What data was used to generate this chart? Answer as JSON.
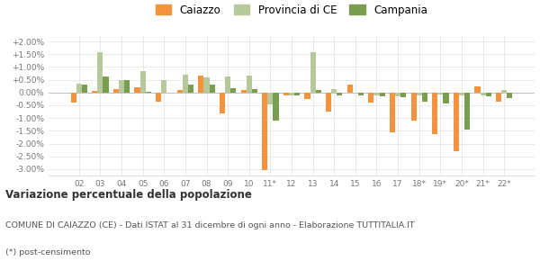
{
  "categories": [
    "02",
    "03",
    "04",
    "05",
    "06",
    "07",
    "08",
    "09",
    "10",
    "11*",
    "12",
    "13",
    "14",
    "15",
    "16",
    "17",
    "18*",
    "19*",
    "20*",
    "21*",
    "22*"
  ],
  "caiazzo": [
    -0.4,
    0.05,
    0.15,
    0.2,
    -0.35,
    0.1,
    0.65,
    -0.8,
    0.1,
    -3.05,
    -0.1,
    -0.25,
    -0.75,
    0.3,
    -0.4,
    -1.55,
    -1.1,
    -1.62,
    -2.3,
    0.25,
    -0.35
  ],
  "provincia_ce": [
    0.35,
    1.58,
    0.5,
    0.85,
    0.5,
    0.7,
    0.6,
    0.62,
    0.65,
    -0.45,
    -0.1,
    1.58,
    0.15,
    0.0,
    -0.1,
    -0.15,
    -0.12,
    -0.08,
    -0.1,
    -0.1,
    0.1
  ],
  "campania": [
    0.3,
    0.62,
    0.48,
    0.02,
    0.0,
    0.3,
    0.32,
    0.18,
    0.15,
    -1.1,
    -0.1,
    0.1,
    -0.1,
    -0.1,
    -0.15,
    -0.18,
    -0.35,
    -0.42,
    -1.45,
    -0.15,
    -0.22
  ],
  "color_caiazzo": "#f5923e",
  "color_provincia": "#b5c99a",
  "color_campania": "#7a9e50",
  "title_bold": "Variazione percentuale della popolazione",
  "subtitle1": "COMUNE DI CAIAZZO (CE) - Dati ISTAT al 31 dicembre di ogni anno - Elaborazione TUTTITALIA.IT",
  "subtitle2": "(*) post-censimento",
  "ylim": [
    -3.25,
    2.25
  ],
  "yticks": [
    -3.0,
    -2.5,
    -2.0,
    -1.5,
    -1.0,
    -0.5,
    0.0,
    0.5,
    1.0,
    1.5,
    2.0
  ],
  "ytick_labels": [
    "-3.00%",
    "-2.50%",
    "-2.00%",
    "-1.50%",
    "-1.00%",
    "-0.50%",
    "0.00%",
    "+0.50%",
    "+1.00%",
    "+1.50%",
    "+2.00%"
  ],
  "background_color": "#ffffff",
  "grid_color": "#e0e0e0",
  "bar_width": 0.26
}
